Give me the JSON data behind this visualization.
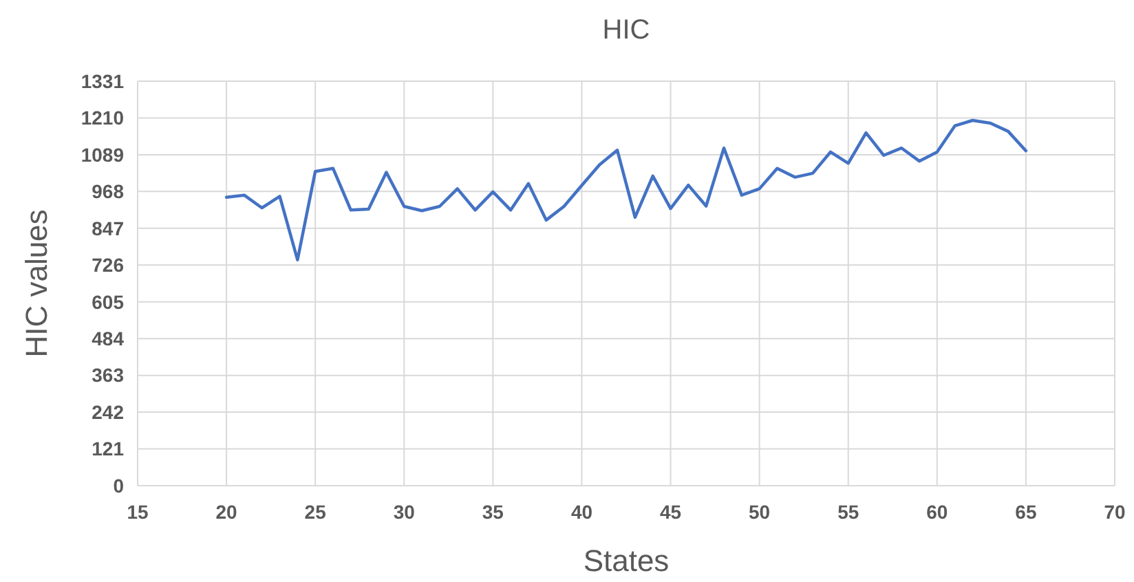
{
  "chart_data": {
    "type": "line",
    "title": "HIC",
    "xlabel": "States",
    "ylabel": "HIC values",
    "x": [
      20,
      21,
      22,
      23,
      24,
      25,
      26,
      27,
      28,
      29,
      30,
      31,
      32,
      33,
      34,
      35,
      36,
      37,
      38,
      39,
      40,
      41,
      42,
      43,
      44,
      45,
      46,
      47,
      48,
      49,
      50,
      51,
      52,
      53,
      54,
      55,
      56,
      57,
      58,
      59,
      60,
      61,
      62,
      63,
      64,
      65
    ],
    "series": [
      {
        "color": "#4472c4",
        "values": [
          949,
          956,
          914,
          952,
          743,
          1034,
          1044,
          907,
          910,
          1031,
          919,
          905,
          919,
          977,
          907,
          967,
          907,
          994,
          874,
          919,
          988,
          1056,
          1104,
          883,
          1019,
          912,
          989,
          920,
          1111,
          956,
          977,
          1044,
          1015,
          1028,
          1098,
          1061,
          1161,
          1087,
          1111,
          1068,
          1098,
          1184,
          1202,
          1193,
          1166,
          1102
        ]
      }
    ],
    "xlim": [
      15,
      70
    ],
    "xticks": [
      15,
      20,
      25,
      30,
      35,
      40,
      45,
      50,
      55,
      60,
      65,
      70
    ],
    "ylim": [
      0,
      1331
    ],
    "yticks": [
      0,
      121,
      242,
      363,
      484,
      605,
      726,
      847,
      968,
      1089,
      1210,
      1331
    ],
    "grid": true,
    "marker": "none",
    "line_style": "solid"
  }
}
